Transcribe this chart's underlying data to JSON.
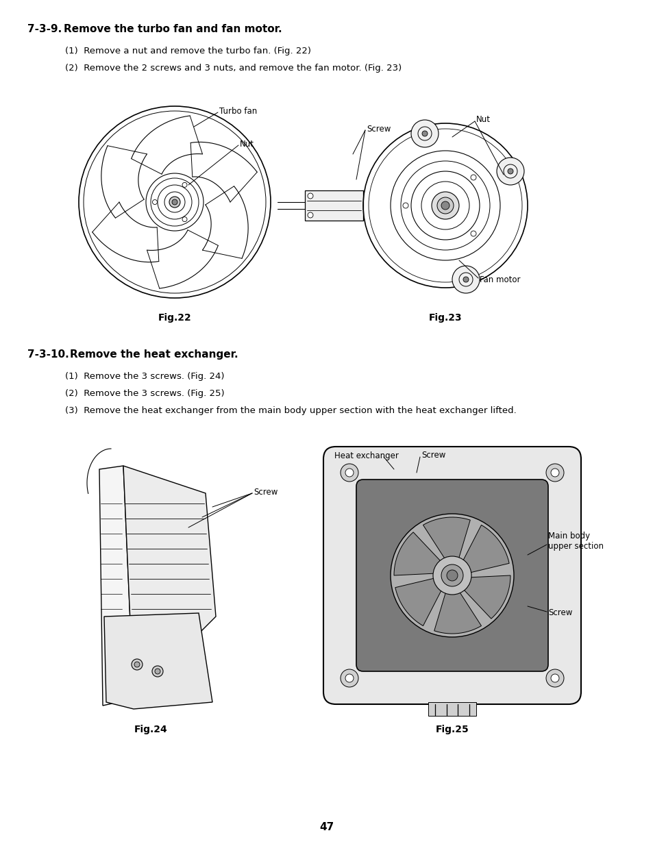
{
  "bg_color": "#ffffff",
  "page_number": "47",
  "section1_title_plain": "7-3-9. ",
  "section1_title_bold": "Remove the turbo fan and fan motor.",
  "section1_step1": "(1)  Remove a nut and remove the turbo fan. (Fig. 22)",
  "section1_step2": "(2)  Remove the 2 screws and 3 nuts, and remove the fan motor. (Fig. 23)",
  "fig22_label": "Fig.22",
  "fig23_label": "Fig.23",
  "fig24_label": "Fig.24",
  "fig25_label": "Fig.25",
  "section2_title_plain": "7-3-10. ",
  "section2_title_bold": "Remove the heat exchanger.",
  "section2_step1": "(1)  Remove the 3 screws. (Fig. 24)",
  "section2_step2": "(2)  Remove the 3 screws. (Fig. 25)",
  "section2_step3": "(3)  Remove the heat exchanger from the main body upper section with the heat exchanger lifted.",
  "label_turbo_fan": "Turbo fan",
  "label_nut_fig22": "Nut",
  "label_screw_fig23": "Screw",
  "label_nut_fig23": "Nut",
  "label_fan_motor": "Fan motor",
  "label_screw_fig24": "Screw",
  "label_heat_exchanger": "Heat exchanger",
  "label_screw_fig25a": "Screw",
  "label_main_body": "Main body\nupper section",
  "label_screw_fig25b": "Screw"
}
